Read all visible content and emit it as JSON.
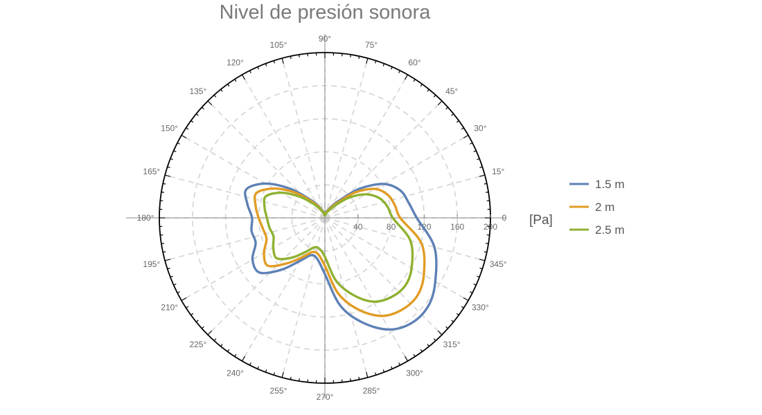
{
  "chart_data": {
    "type": "polar-line",
    "title": "Nivel de presión sonora",
    "radial_unit": "[Pa]",
    "radial_range": [
      0,
      200
    ],
    "radial_ticks": [
      40,
      80,
      120,
      160,
      200
    ],
    "radial_tick_labels": [
      "40",
      "80",
      "120",
      "160",
      "200"
    ],
    "angle_tick_labels": [
      "0",
      "15°",
      "30°",
      "45°",
      "60°",
      "75°",
      "90°",
      "105°",
      "120°",
      "135°",
      "150°",
      "165°",
      "180°",
      "195°",
      "210°",
      "225°",
      "240°",
      "255°",
      "270°",
      "285°",
      "300°",
      "315°",
      "330°",
      "345°"
    ],
    "grid": true,
    "legend_position": "right",
    "series": [
      {
        "name": "1.5 m",
        "color": "#5e81b5",
        "points": [
          [
            0,
            111
          ],
          [
            10,
            103
          ],
          [
            20,
            97
          ],
          [
            30,
            82
          ],
          [
            40,
            55
          ],
          [
            50,
            28
          ],
          [
            60,
            16
          ],
          [
            75,
            8
          ],
          [
            90,
            5
          ],
          [
            105,
            8
          ],
          [
            120,
            18
          ],
          [
            130,
            30
          ],
          [
            140,
            55
          ],
          [
            150,
            83
          ],
          [
            160,
            101
          ],
          [
            170,
            95
          ],
          [
            180,
            88
          ],
          [
            190,
            90
          ],
          [
            200,
            89
          ],
          [
            210,
            101
          ],
          [
            220,
            103
          ],
          [
            230,
            82
          ],
          [
            240,
            60
          ],
          [
            250,
            48
          ],
          [
            260,
            51
          ],
          [
            270,
            68
          ],
          [
            280,
            108
          ],
          [
            290,
            135
          ],
          [
            300,
            156
          ],
          [
            310,
            165
          ],
          [
            320,
            164
          ],
          [
            330,
            154
          ],
          [
            345,
            137
          ],
          [
            360,
            111
          ]
        ]
      },
      {
        "name": "2 m",
        "color": "#e19c24",
        "points": [
          [
            0,
            91
          ],
          [
            10,
            86
          ],
          [
            20,
            81
          ],
          [
            30,
            70
          ],
          [
            40,
            48
          ],
          [
            50,
            24
          ],
          [
            60,
            14
          ],
          [
            75,
            7
          ],
          [
            90,
            4
          ],
          [
            105,
            7
          ],
          [
            120,
            16
          ],
          [
            130,
            27
          ],
          [
            140,
            48
          ],
          [
            150,
            71
          ],
          [
            160,
            88
          ],
          [
            170,
            85
          ],
          [
            180,
            80
          ],
          [
            190,
            76
          ],
          [
            200,
            75
          ],
          [
            210,
            85
          ],
          [
            220,
            90
          ],
          [
            230,
            72
          ],
          [
            240,
            55
          ],
          [
            250,
            44
          ],
          [
            260,
            45
          ],
          [
            270,
            58
          ],
          [
            280,
            93
          ],
          [
            290,
            118
          ],
          [
            300,
            137
          ],
          [
            310,
            145
          ],
          [
            320,
            146
          ],
          [
            330,
            138
          ],
          [
            345,
            121
          ],
          [
            360,
            91
          ]
        ]
      },
      {
        "name": "2.5 m",
        "color": "#8fb131",
        "points": [
          [
            0,
            82
          ],
          [
            10,
            77
          ],
          [
            20,
            70
          ],
          [
            30,
            57
          ],
          [
            40,
            38
          ],
          [
            50,
            20
          ],
          [
            60,
            11
          ],
          [
            75,
            6
          ],
          [
            90,
            3
          ],
          [
            105,
            6
          ],
          [
            120,
            13
          ],
          [
            130,
            23
          ],
          [
            140,
            40
          ],
          [
            150,
            61
          ],
          [
            160,
            76
          ],
          [
            170,
            74
          ],
          [
            180,
            70
          ],
          [
            190,
            68
          ],
          [
            200,
            66
          ],
          [
            210,
            72
          ],
          [
            220,
            76
          ],
          [
            230,
            63
          ],
          [
            240,
            48
          ],
          [
            250,
            38
          ],
          [
            260,
            38
          ],
          [
            270,
            47
          ],
          [
            280,
            77
          ],
          [
            290,
            99
          ],
          [
            300,
            117
          ],
          [
            310,
            125
          ],
          [
            320,
            127
          ],
          [
            330,
            121
          ],
          [
            345,
            107
          ],
          [
            360,
            82
          ]
        ]
      }
    ]
  }
}
